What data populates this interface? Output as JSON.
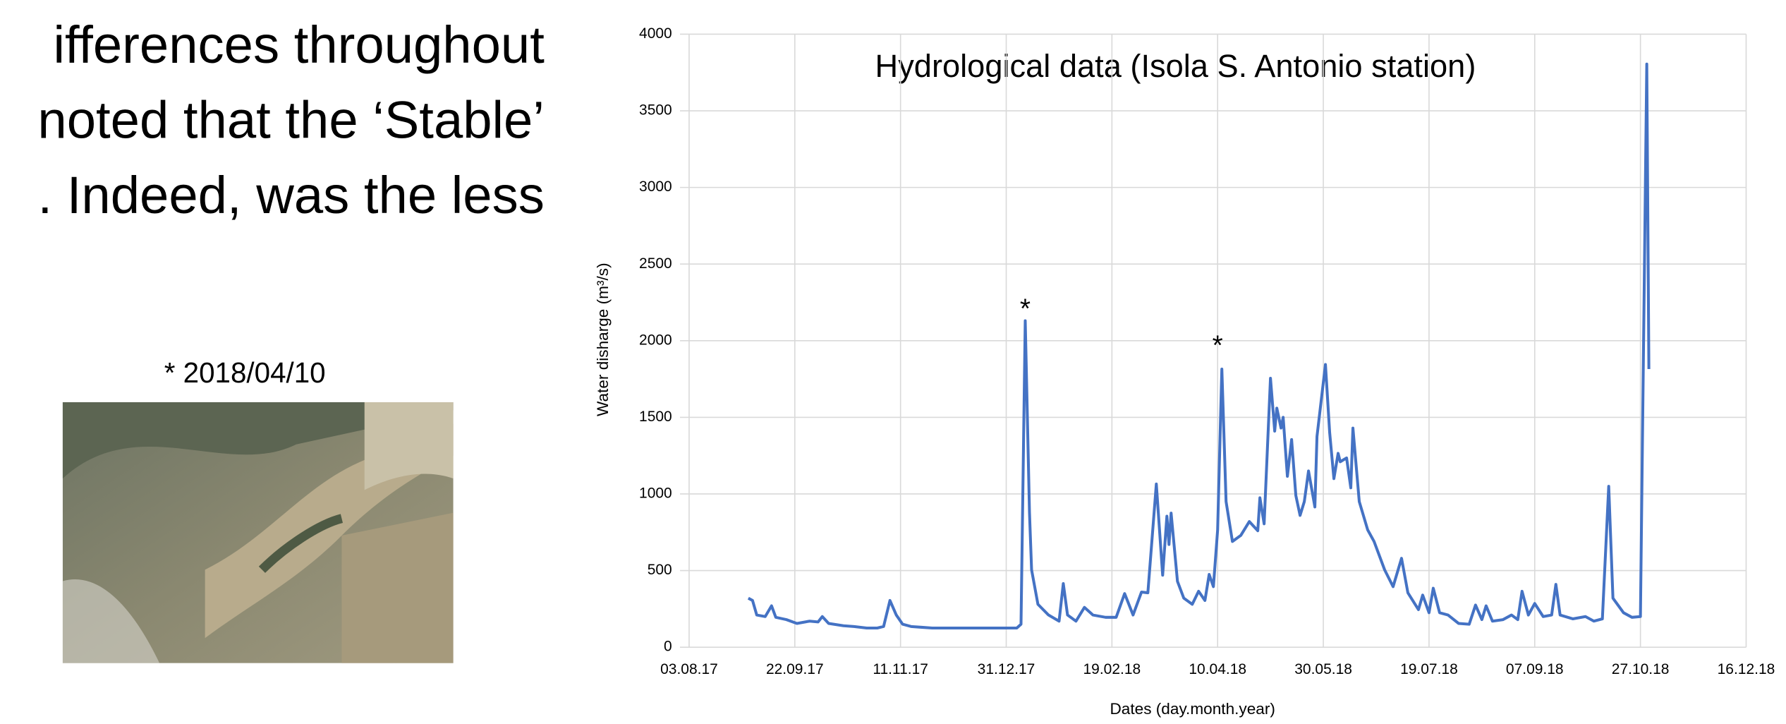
{
  "slide": {
    "text_lines": [
      "ifferences throughout",
      "noted that the ‘Stable’",
      ". Indeed, was the less"
    ],
    "image_caption": "* 2018/04/10"
  },
  "chart_data": {
    "type": "line",
    "title": "Hydrological data (Isola S. Antonio station)",
    "x_label": "Dates (day.month.year)",
    "y_label": "Water disharge (m³/s)",
    "x": [
      "31.08.17",
      "02.09.17",
      "04.09.17",
      "08.09.17",
      "11.09.17",
      "13.09.17",
      "18.09.17",
      "23.09.17",
      "29.09.17",
      "03.10.17",
      "05.10.17",
      "08.10.17",
      "15.10.17",
      "20.10.17",
      "26.10.17",
      "31.10.17",
      "03.11.17",
      "06.11.17",
      "09.11.17",
      "12.11.17",
      "16.11.17",
      "21.11.17",
      "26.11.17",
      "02.12.17",
      "18.12.17",
      "05.01.18",
      "07.01.18",
      "09.01.18",
      "11.01.18",
      "12.01.18",
      "15.01.18",
      "20.01.18",
      "25.01.18",
      "27.01.18",
      "29.01.18",
      "02.02.18",
      "06.02.18",
      "10.02.18",
      "16.02.18",
      "21.02.18",
      "25.02.18",
      "01.03.18",
      "05.03.18",
      "08.03.18",
      "12.03.18",
      "15.03.18",
      "17.03.18",
      "18.03.18",
      "19.03.18",
      "22.03.18",
      "25.03.18",
      "29.03.18",
      "01.04.18",
      "04.04.18",
      "06.04.18",
      "08.04.18",
      "10.04.18",
      "12.04.18",
      "14.04.18",
      "17.04.18",
      "21.04.18",
      "25.04.18",
      "29.04.18",
      "30.04.18",
      "02.05.18",
      "05.05.18",
      "07.05.18",
      "08.05.18",
      "10.05.18",
      "11.05.18",
      "13.05.18",
      "15.05.18",
      "17.05.18",
      "19.05.18",
      "21.05.18",
      "23.05.18",
      "26.05.18",
      "27.05.18",
      "31.05.18",
      "02.06.18",
      "04.06.18",
      "06.06.18",
      "07.06.18",
      "10.06.18",
      "12.06.18",
      "13.06.18",
      "16.06.18",
      "20.06.18",
      "23.06.18",
      "28.06.18",
      "02.07.18",
      "06.07.18",
      "09.07.18",
      "14.07.18",
      "16.07.18",
      "19.07.18",
      "21.07.18",
      "24.07.18",
      "28.07.18",
      "02.08.18",
      "07.08.18",
      "10.08.18",
      "13.08.18",
      "15.08.18",
      "18.08.18",
      "23.08.18",
      "27.08.18",
      "30.08.18",
      "01.09.18",
      "04.09.18",
      "07.09.18",
      "11.09.18",
      "15.09.18",
      "17.09.18",
      "19.09.18",
      "25.09.18",
      "01.10.18",
      "05.10.18",
      "09.10.18",
      "12.10.18",
      "14.10.18",
      "19.10.18",
      "23.10.18",
      "27.10.18",
      "30.10.18",
      "31.10.18"
    ],
    "series": [
      {
        "color": "#4472c4",
        "values": [
          320,
          305,
          210,
          200,
          270,
          195,
          180,
          155,
          170,
          165,
          200,
          155,
          140,
          135,
          125,
          125,
          135,
          305,
          210,
          150,
          135,
          130,
          125,
          125,
          125,
          125,
          150,
          2130,
          880,
          505,
          280,
          210,
          170,
          415,
          210,
          170,
          260,
          210,
          195,
          195,
          350,
          210,
          360,
          355,
          1065,
          470,
          855,
          670,
          875,
          430,
          320,
          280,
          365,
          305,
          475,
          395,
          765,
          1815,
          950,
          690,
          730,
          820,
          760,
          975,
          805,
          1755,
          1410,
          1560,
          1430,
          1500,
          1115,
          1355,
          990,
          860,
          950,
          1150,
          915,
          1375,
          1845,
          1400,
          1100,
          1265,
          1210,
          1235,
          1040,
          1430,
          950,
          765,
          690,
          505,
          395,
          580,
          355,
          245,
          340,
          225,
          385,
          225,
          210,
          155,
          150,
          275,
          180,
          270,
          170,
          180,
          210,
          180,
          365,
          210,
          285,
          200,
          210,
          410,
          210,
          185,
          200,
          170,
          185,
          1050,
          320,
          225,
          195,
          200,
          3805,
          1815
        ]
      }
    ],
    "xlim": [
      "03.08.17",
      "16.12.18"
    ],
    "xticks": [
      "03.08.17",
      "22.09.17",
      "11.11.17",
      "31.12.17",
      "19.02.18",
      "10.04.18",
      "30.05.18",
      "19.07.18",
      "07.09.18",
      "27.10.18",
      "16.12.18"
    ],
    "ylim": [
      0,
      4000
    ],
    "yticks": [
      0,
      500,
      1000,
      1500,
      2000,
      2500,
      3000,
      3500,
      4000
    ],
    "grid": true,
    "annotations": [
      {
        "text": "*",
        "x": "09.01.18",
        "y": 2240
      },
      {
        "text": "*",
        "x": "10.04.18",
        "y": 2000
      }
    ]
  }
}
